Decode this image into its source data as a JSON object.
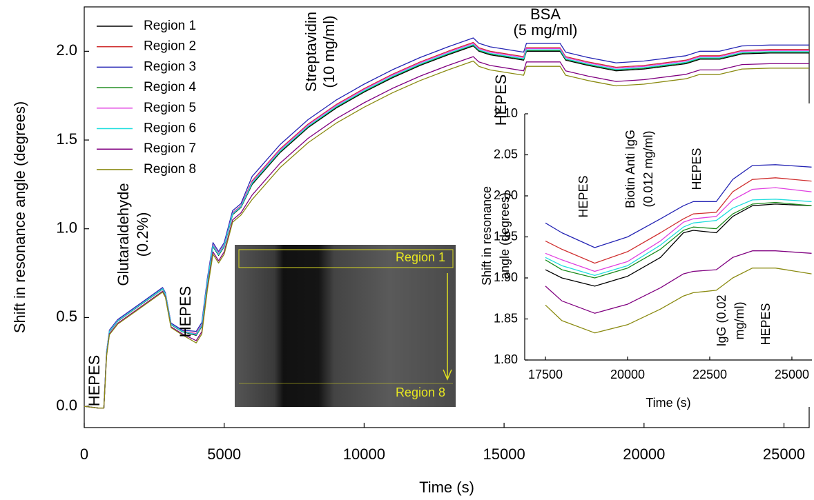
{
  "chart_data": [
    {
      "type": "line",
      "xlabel": "Time (s)",
      "ylabel": "Shift in resonance angle (degrees)",
      "xlim": [
        0,
        25900
      ],
      "ylim": [
        -0.12,
        2.25
      ],
      "xticks": [
        0,
        5000,
        10000,
        15000,
        20000,
        25000
      ],
      "yticks": [
        {
          "value": 0,
          "label": "0.0"
        },
        {
          "value": 0.5,
          "label": "0.5"
        },
        {
          "value": 1,
          "label": "1.0"
        },
        {
          "value": 1.5,
          "label": "1.5"
        },
        {
          "value": 2,
          "label": "2.0"
        }
      ],
      "grid": false,
      "legend": "upper left",
      "annotations": [
        [
          "HEPES"
        ],
        [
          "Glutaraldehyde",
          "(0.2%)"
        ],
        [
          "HEPES"
        ],
        [
          "Streptavidin",
          "(10 mg/ml)"
        ],
        [
          "BSA",
          "(5 mg/ml)"
        ],
        [
          "HEPES"
        ]
      ],
      "image_labels": [
        "Region 1",
        "Region 8"
      ],
      "x": [
        0,
        500,
        700,
        800,
        900,
        1200,
        2000,
        2800,
        2900,
        3100,
        3500,
        4000,
        4200,
        4400,
        4600,
        4800,
        5000,
        5300,
        5600,
        6000,
        7000,
        8000,
        9000,
        10000,
        11000,
        12000,
        13000,
        13900,
        14100,
        14500,
        15700,
        15800,
        17000,
        17200,
        18000,
        19000,
        20000,
        21500,
        22000,
        22700,
        23500,
        24500,
        25900
      ],
      "series": [
        {
          "name": "Region 1",
          "color": "#000000",
          "values": [
            0,
            -0.01,
            -0.01,
            0.3,
            0.42,
            0.48,
            0.57,
            0.66,
            0.63,
            0.46,
            0.42,
            0.4,
            0.45,
            0.7,
            0.9,
            0.85,
            0.9,
            1.08,
            1.12,
            1.25,
            1.43,
            1.57,
            1.68,
            1.77,
            1.85,
            1.92,
            1.98,
            2.03,
            2.0,
            1.98,
            1.95,
            2.0,
            2.0,
            1.95,
            1.92,
            1.89,
            1.9,
            1.93,
            1.955,
            1.955,
            1.985,
            1.99,
            1.99
          ]
        },
        {
          "name": "Region 2",
          "color": "#d03030",
          "values": [
            0,
            -0.01,
            -0.01,
            0.304,
            0.424,
            0.484,
            0.574,
            0.664,
            0.634,
            0.464,
            0.424,
            0.41,
            0.46,
            0.71,
            0.91,
            0.86,
            0.91,
            1.09,
            1.13,
            1.27,
            1.45,
            1.59,
            1.7,
            1.79,
            1.87,
            1.94,
            2.0,
            2.05,
            2.02,
            2.0,
            1.97,
            2.02,
            2.02,
            1.97,
            1.94,
            1.91,
            1.92,
            1.95,
            1.975,
            1.975,
            2.005,
            2.01,
            2.01
          ]
        },
        {
          "name": "Region 3",
          "color": "#2424b4",
          "values": [
            0,
            -0.01,
            -0.01,
            0.309,
            0.429,
            0.489,
            0.579,
            0.669,
            0.639,
            0.469,
            0.429,
            0.422,
            0.472,
            0.722,
            0.922,
            0.872,
            0.922,
            1.102,
            1.142,
            1.295,
            1.475,
            1.615,
            1.725,
            1.815,
            1.895,
            1.965,
            2.025,
            2.075,
            2.045,
            2.025,
            1.995,
            2.045,
            2.045,
            1.995,
            1.965,
            1.935,
            1.945,
            1.975,
            2.0,
            2.0,
            2.03,
            2.035,
            2.035
          ]
        },
        {
          "name": "Region 4",
          "color": "#1a8a1a",
          "values": [
            0,
            -0.01,
            -0.01,
            0.301,
            0.421,
            0.481,
            0.571,
            0.661,
            0.631,
            0.461,
            0.421,
            0.403,
            0.453,
            0.703,
            0.903,
            0.853,
            0.903,
            1.083,
            1.123,
            1.255,
            1.435,
            1.575,
            1.685,
            1.775,
            1.855,
            1.925,
            1.985,
            2.035,
            2.005,
            1.985,
            1.955,
            2.005,
            2.005,
            1.955,
            1.925,
            1.895,
            1.905,
            1.935,
            1.96,
            1.96,
            1.99,
            1.995,
            1.995
          ]
        },
        {
          "name": "Region 5",
          "color": "#e040e0",
          "values": [
            0,
            -0.01,
            -0.01,
            0.303,
            0.423,
            0.483,
            0.573,
            0.663,
            0.633,
            0.463,
            0.423,
            0.408,
            0.458,
            0.708,
            0.908,
            0.858,
            0.908,
            1.088,
            1.128,
            1.265,
            1.445,
            1.585,
            1.695,
            1.785,
            1.865,
            1.935,
            1.995,
            2.045,
            2.015,
            1.995,
            1.965,
            2.015,
            2.015,
            1.965,
            1.935,
            1.905,
            1.915,
            1.945,
            1.97,
            1.97,
            2.0,
            2.005,
            2.005
          ]
        },
        {
          "name": "Region 6",
          "color": "#20dede",
          "values": [
            0,
            -0.01,
            -0.01,
            0.302,
            0.422,
            0.482,
            0.572,
            0.662,
            0.632,
            0.462,
            0.422,
            0.404,
            0.454,
            0.704,
            0.904,
            0.854,
            0.904,
            1.084,
            1.124,
            1.258,
            1.438,
            1.578,
            1.688,
            1.778,
            1.858,
            1.928,
            1.988,
            2.038,
            2.008,
            1.988,
            1.958,
            2.008,
            2.008,
            1.958,
            1.928,
            1.898,
            1.908,
            1.938,
            1.963,
            1.963,
            1.993,
            1.998,
            1.998
          ]
        },
        {
          "name": "Region 7",
          "color": "#800080",
          "values": [
            0,
            -0.01,
            -0.01,
            0.288,
            0.408,
            0.468,
            0.558,
            0.648,
            0.618,
            0.448,
            0.408,
            0.37,
            0.42,
            0.67,
            0.87,
            0.82,
            0.87,
            1.05,
            1.09,
            1.19,
            1.37,
            1.51,
            1.62,
            1.71,
            1.79,
            1.86,
            1.92,
            1.97,
            1.94,
            1.92,
            1.89,
            1.94,
            1.94,
            1.89,
            1.86,
            1.83,
            1.84,
            1.87,
            1.895,
            1.895,
            1.925,
            1.93,
            1.93
          ]
        },
        {
          "name": "Region 8",
          "color": "#8a8a10",
          "values": [
            0,
            -0.01,
            -0.01,
            0.283,
            0.403,
            0.463,
            0.553,
            0.643,
            0.613,
            0.443,
            0.403,
            0.357,
            0.407,
            0.657,
            0.857,
            0.807,
            0.857,
            1.037,
            1.077,
            1.165,
            1.345,
            1.485,
            1.595,
            1.685,
            1.765,
            1.835,
            1.895,
            1.945,
            1.915,
            1.895,
            1.865,
            1.915,
            1.915,
            1.865,
            1.835,
            1.805,
            1.815,
            1.845,
            1.87,
            1.87,
            1.9,
            1.905,
            1.905
          ]
        }
      ]
    },
    {
      "type": "line",
      "xlabel": "Time (s)",
      "ylabel": [
        "Shift in resonance",
        "angle (degrees)"
      ],
      "xlim": [
        16870,
        25610
      ],
      "ylim": [
        1.8,
        2.1
      ],
      "xticks": [
        17500,
        20000,
        22500,
        25000
      ],
      "yticks": [
        {
          "value": 1.8,
          "label": "1.80"
        },
        {
          "value": 1.85,
          "label": "1.85"
        },
        {
          "value": 1.9,
          "label": "1.90"
        },
        {
          "value": 1.95,
          "label": "1.95"
        },
        {
          "value": 2,
          "label": "2.00"
        },
        {
          "value": 2.05,
          "label": "2.05"
        },
        {
          "value": 2.1,
          "label": "2.10"
        }
      ],
      "annotations": [
        [
          "HEPES"
        ],
        [
          "Biotin Anti IgG",
          "(0.012 mg/ml)"
        ],
        [
          "HEPES"
        ],
        [
          "IgG (0.02",
          "mg/ml)"
        ],
        [
          "HEPES"
        ]
      ],
      "x": [
        17500,
        18000,
        19000,
        20000,
        21000,
        21700,
        22000,
        22700,
        23200,
        23800,
        24500,
        25600
      ],
      "series": [
        {
          "color": "#000000",
          "values": [
            1.91,
            1.9,
            1.89,
            1.902,
            1.925,
            1.955,
            1.958,
            1.955,
            1.975,
            1.988,
            1.99,
            1.988
          ]
        },
        {
          "color": "#d03030",
          "values": [
            1.945,
            1.935,
            1.918,
            1.932,
            1.955,
            1.972,
            1.978,
            1.98,
            2.005,
            2.02,
            2.022,
            2.018
          ]
        },
        {
          "color": "#2424b4",
          "values": [
            1.967,
            1.955,
            1.937,
            1.95,
            1.972,
            1.988,
            1.993,
            1.993,
            2.02,
            2.037,
            2.038,
            2.035
          ]
        },
        {
          "color": "#1a8a1a",
          "values": [
            1.922,
            1.91,
            1.9,
            1.912,
            1.935,
            1.958,
            1.962,
            1.96,
            1.978,
            1.99,
            1.992,
            1.988
          ]
        },
        {
          "color": "#e040e0",
          "values": [
            1.93,
            1.922,
            1.908,
            1.92,
            1.945,
            1.968,
            1.972,
            1.975,
            1.995,
            2.008,
            2.01,
            2.005
          ]
        },
        {
          "color": "#20dede",
          "values": [
            1.925,
            1.915,
            1.903,
            1.915,
            1.94,
            1.962,
            1.967,
            1.97,
            1.985,
            1.995,
            1.996,
            1.993
          ]
        },
        {
          "color": "#800080",
          "values": [
            1.89,
            1.872,
            1.857,
            1.868,
            1.888,
            1.905,
            1.908,
            1.91,
            1.925,
            1.933,
            1.933,
            1.93
          ]
        },
        {
          "color": "#8a8a10",
          "values": [
            1.867,
            1.848,
            1.833,
            1.843,
            1.862,
            1.878,
            1.882,
            1.885,
            1.9,
            1.912,
            1.912,
            1.905
          ]
        }
      ]
    }
  ]
}
